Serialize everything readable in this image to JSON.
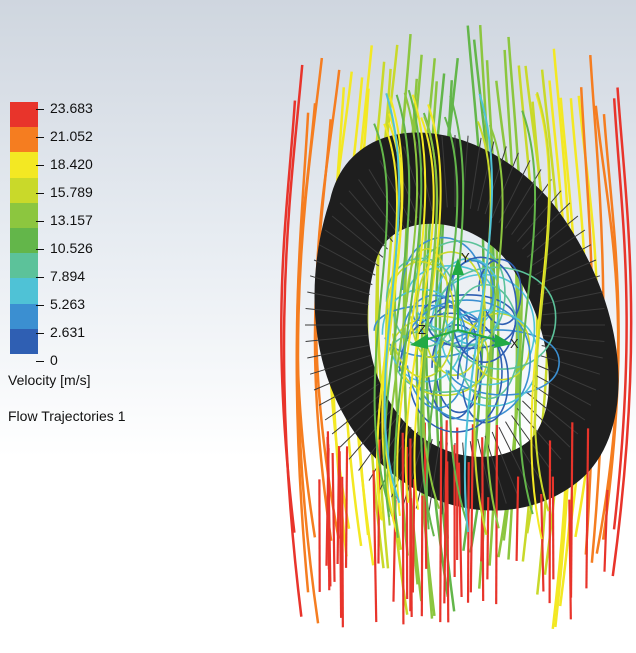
{
  "legend": {
    "ticks": [
      "23.683",
      "21.052",
      "18.420",
      "15.789",
      "13.157",
      "10.526",
      "7.894",
      "5.263",
      "2.631",
      "0"
    ],
    "colors": [
      "#e8342b",
      "#f57d20",
      "#f3e823",
      "#c9d92a",
      "#8cc63f",
      "#63b64a",
      "#5cc29a",
      "#4fc2d6",
      "#3b8fd1",
      "#2f5fb3"
    ],
    "unit_label": "Velocity [m/s]"
  },
  "plot_name": "Flow Trajectories 1",
  "triad": {
    "x_label": "X",
    "y_label": "Y",
    "z_label": "Z"
  },
  "colors": {
    "background_top": "#cfd6df",
    "background_bottom": "#ffffff",
    "rotor": "#1e1e1e",
    "triad": "#22aa44"
  }
}
